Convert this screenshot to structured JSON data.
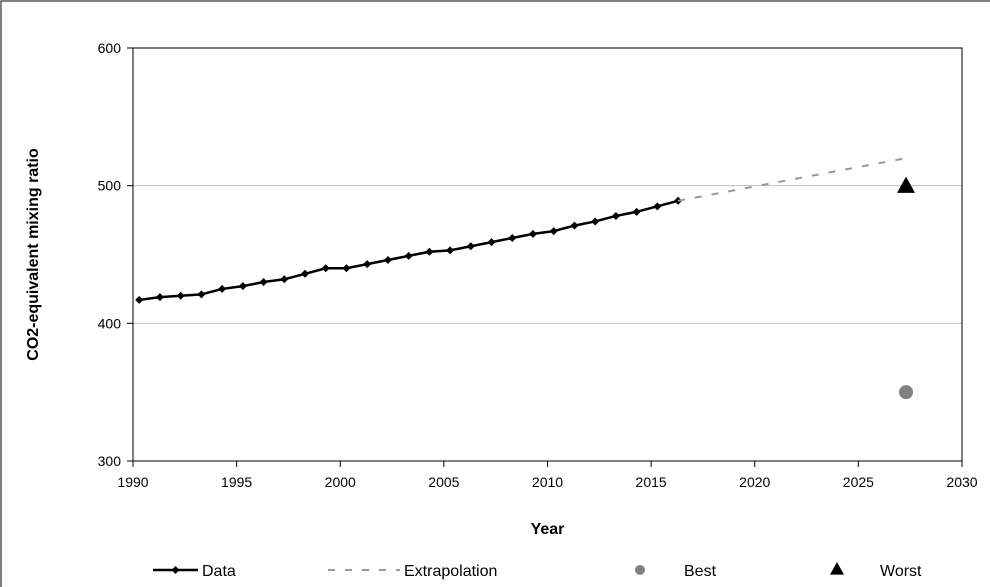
{
  "chart_data": {
    "type": "line",
    "title": "",
    "xlabel": "Year",
    "ylabel": "CO2-equivalent mixing ratio",
    "xlim": [
      1990,
      2030
    ],
    "ylim": [
      300,
      600
    ],
    "x_ticks": [
      1990,
      1995,
      2000,
      2005,
      2010,
      2015,
      2020,
      2025,
      2030
    ],
    "y_ticks": [
      300,
      400,
      500,
      600
    ],
    "grid": "horizontal",
    "legend_position": "bottom",
    "series": [
      {
        "name": "Data",
        "style": "line-with-diamond-markers",
        "color": "#000000",
        "x": [
          1990.3,
          1991.3,
          1992.3,
          1993.3,
          1994.3,
          1995.3,
          1996.3,
          1997.3,
          1998.3,
          1999.3,
          2000.3,
          2001.3,
          2002.3,
          2003.3,
          2004.3,
          2005.3,
          2006.3,
          2007.3,
          2008.3,
          2009.3,
          2010.3,
          2011.3,
          2012.3,
          2013.3,
          2014.3,
          2015.3,
          2016.3
        ],
        "y": [
          417,
          419,
          420,
          421,
          425,
          427,
          430,
          432,
          436,
          440,
          440,
          443,
          446,
          449,
          452,
          453,
          456,
          459,
          462,
          465,
          467,
          471,
          474,
          478,
          481,
          485,
          489
        ]
      },
      {
        "name": "Extrapolation",
        "style": "dashed-line",
        "color": "#999999",
        "x": [
          2016.3,
          2027.3
        ],
        "y": [
          489,
          520
        ]
      },
      {
        "name": "Best",
        "style": "circle-marker",
        "color": "#808080",
        "x": [
          2027.3
        ],
        "y": [
          350
        ]
      },
      {
        "name": "Worst",
        "style": "triangle-marker",
        "color": "#000000",
        "x": [
          2027.3
        ],
        "y": [
          500
        ]
      }
    ]
  }
}
